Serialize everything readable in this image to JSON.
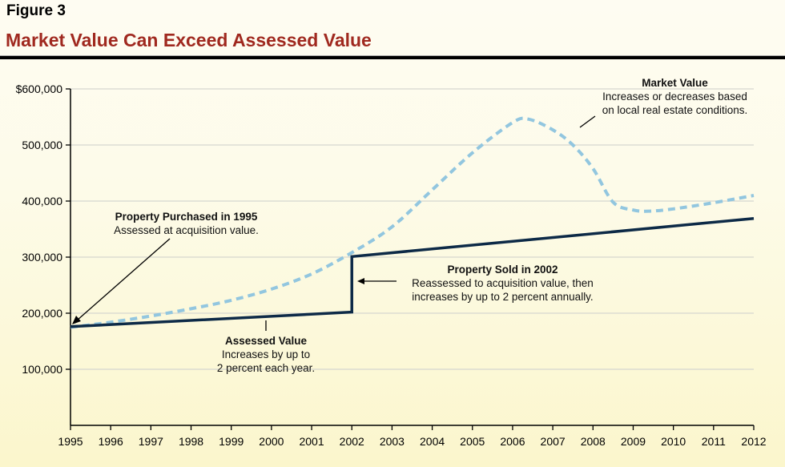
{
  "figure_label": "Figure 3",
  "chart_data": {
    "type": "line",
    "title": "Market Value Can Exceed Assessed Value",
    "xlabel": "",
    "ylabel": "",
    "xlim": [
      1995,
      2012
    ],
    "ylim": [
      0,
      600000
    ],
    "x_ticks": [
      "1995",
      "1996",
      "1997",
      "1998",
      "1999",
      "2000",
      "2001",
      "2002",
      "2003",
      "2004",
      "2005",
      "2006",
      "2007",
      "2008",
      "2009",
      "2010",
      "2011",
      "2012"
    ],
    "y_ticks": [
      {
        "value": 100000,
        "label": "100,000"
      },
      {
        "value": 200000,
        "label": "200,000"
      },
      {
        "value": 300000,
        "label": "300,000"
      },
      {
        "value": 400000,
        "label": "400,000"
      },
      {
        "value": 500000,
        "label": "500,000"
      },
      {
        "value": 600000,
        "label": "$600,000"
      }
    ],
    "grid": true,
    "series": [
      {
        "name": "Assessed Value",
        "style": "solid",
        "color": "#0d2a47",
        "points": [
          [
            1995,
            176000
          ],
          [
            2002,
            202000
          ],
          [
            2002,
            301000
          ],
          [
            2012,
            369000
          ]
        ]
      },
      {
        "name": "Market Value",
        "style": "dashed",
        "color": "#92c6df",
        "points": [
          [
            1995,
            175000
          ],
          [
            1996,
            184000
          ],
          [
            1997,
            195000
          ],
          [
            1998,
            208000
          ],
          [
            1999,
            223000
          ],
          [
            2000,
            243000
          ],
          [
            2001,
            270000
          ],
          [
            2002,
            308000
          ],
          [
            2003,
            354000
          ],
          [
            2004,
            420000
          ],
          [
            2005,
            486000
          ],
          [
            2006,
            540000
          ],
          [
            2006.4,
            546000
          ],
          [
            2007,
            527000
          ],
          [
            2007.5,
            500000
          ],
          [
            2008,
            458000
          ],
          [
            2008.5,
            398000
          ],
          [
            2009,
            384000
          ],
          [
            2009.4,
            382000
          ],
          [
            2010,
            386000
          ],
          [
            2011,
            397000
          ],
          [
            2012,
            410000
          ]
        ]
      }
    ],
    "annotations": [
      {
        "title": "Market Value",
        "lines": [
          "Increases or decreases based",
          "on local real estate conditions."
        ]
      },
      {
        "title": "Property Purchased in 1995",
        "lines": [
          "Assessed at acquisition value."
        ]
      },
      {
        "title": "Property Sold in 2002",
        "lines": [
          "Reassessed to acquisition value, then",
          "increases by up to 2 percent annually."
        ]
      },
      {
        "title": "Assessed Value",
        "lines": [
          "Increases by up to",
          "2 percent each year."
        ]
      }
    ]
  }
}
